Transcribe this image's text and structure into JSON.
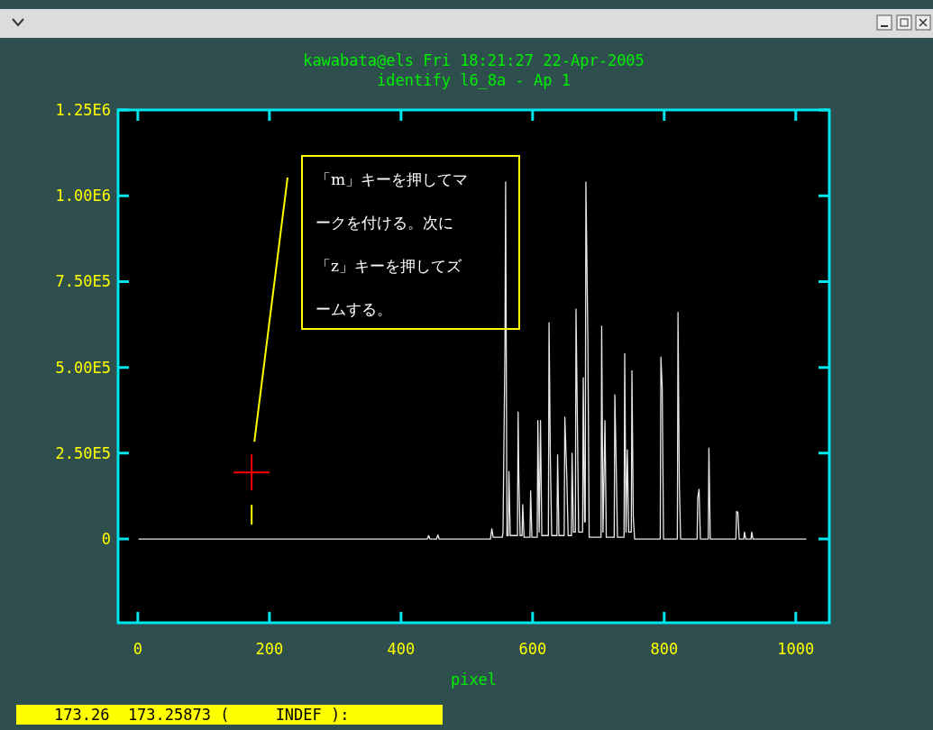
{
  "chart_data": {
    "type": "line",
    "title": "kawabata@els Fri 18:21:27 22-Apr-2005",
    "subtitle": "identify l6_8a - Ap 1",
    "xlabel": "pixel",
    "xlim": [
      -30,
      1051
    ],
    "xticks": [
      0,
      200,
      400,
      600,
      800,
      1000
    ],
    "ylim": [
      -244000,
      1250000
    ],
    "yticks": [
      {
        "value": 0,
        "label": "0"
      },
      {
        "value": 250000,
        "label": "2.50E5"
      },
      {
        "value": 500000,
        "label": "5.00E5"
      },
      {
        "value": 750000,
        "label": "7.50E5"
      },
      {
        "value": 1000000,
        "label": "1.00E6"
      },
      {
        "value": 1250000,
        "label": "1.25E6"
      }
    ],
    "grid": false,
    "marker": "none",
    "line_style": "solid",
    "series": [
      {
        "color": "#e8e8e8",
        "x": [
          1,
          440,
          442,
          444,
          454,
          456,
          458,
          536,
          538,
          540,
          554,
          555,
          558,
          559,
          561,
          563,
          564,
          566,
          577,
          578,
          579,
          581,
          584,
          585,
          587,
          596,
          597,
          599,
          607,
          608,
          610,
          612,
          614,
          624,
          625,
          627,
          629,
          637,
          638,
          640,
          648,
          649,
          652,
          654,
          659,
          660,
          662,
          665,
          666,
          668,
          670,
          676,
          677,
          679,
          680,
          681,
          684,
          686,
          704,
          705,
          707,
          710,
          712,
          724,
          725,
          727,
          729,
          739,
          740,
          742,
          744,
          746,
          750,
          751,
          753,
          755,
          794,
          795,
          797,
          799,
          820,
          821,
          823,
          825,
          850,
          851,
          853,
          855,
          867,
          868,
          870,
          909,
          910,
          912,
          914,
          921,
          922,
          924,
          932,
          933,
          935,
          1016
        ],
        "values": [
          0,
          0,
          10000,
          0,
          0,
          12000,
          0,
          0,
          30000,
          5000,
          5000,
          20000,
          565000,
          1040000,
          10000,
          10000,
          197000,
          10000,
          10000,
          370000,
          190000,
          10000,
          10000,
          100000,
          5000,
          5000,
          140000,
          5000,
          5000,
          345000,
          20000,
          345000,
          10000,
          10000,
          630000,
          235000,
          10000,
          10000,
          245000,
          10000,
          10000,
          355000,
          180000,
          10000,
          10000,
          250000,
          20000,
          20000,
          670000,
          350000,
          20000,
          20000,
          470000,
          50000,
          50000,
          1040000,
          580000,
          5000,
          5000,
          620000,
          20000,
          345000,
          5000,
          5000,
          420000,
          220000,
          5000,
          5000,
          540000,
          20000,
          260000,
          20000,
          20000,
          490000,
          66000,
          0,
          0,
          530000,
          440000,
          0,
          0,
          660000,
          160000,
          0,
          0,
          120000,
          145000,
          0,
          0,
          265000,
          0,
          0,
          80000,
          78000,
          0,
          0,
          20000,
          0,
          0,
          20000,
          0,
          0
        ]
      },
      {
        "type": "scatter",
        "marker": "cross",
        "color": "#ff0000",
        "x": [
          173
        ],
        "values": [
          194000
        ]
      }
    ],
    "annotations": [
      "「m」キーを押してマークを付ける。次に「z」キーを押してズームする。",
      "173.26  173.25873 (     INDEF ):"
    ]
  }
}
